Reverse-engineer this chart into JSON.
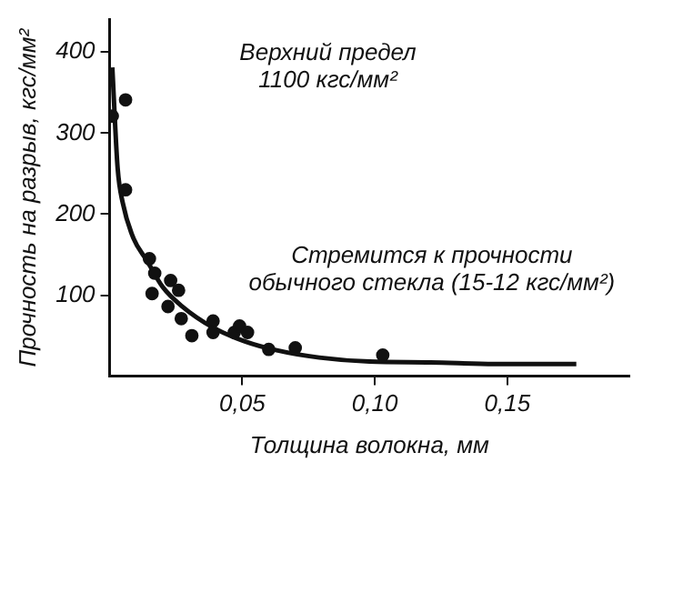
{
  "chart_data": {
    "type": "scatter",
    "xlabel": "Толщина волокна, мм",
    "ylabel": "Прочность на разрыв, кгс/мм²",
    "xlim": [
      0,
      0.196
    ],
    "xticks": [
      {
        "value": 0.05,
        "label": "0,05"
      },
      {
        "value": 0.1,
        "label": "0,10"
      },
      {
        "value": 0.15,
        "label": "0,15"
      }
    ],
    "ylim": [
      0,
      440
    ],
    "yticks": [
      100,
      200,
      300,
      400
    ],
    "annotations": [
      "Верхний предел\n1100 кгс/мм²",
      "Стремится к прочности\nобычного стекла (15-12 кгс/мм²)"
    ],
    "series": [
      {
        "color": "#111111",
        "marker": "circle",
        "x": [
          0.001,
          0.006,
          0.006,
          0.015,
          0.017,
          0.016,
          0.023,
          0.026,
          0.022,
          0.027,
          0.031,
          0.039,
          0.039,
          0.047,
          0.049,
          0.052,
          0.06,
          0.07,
          0.103
        ],
        "values": [
          321,
          341,
          230,
          145,
          127,
          102,
          118,
          106,
          86,
          71,
          50,
          68,
          54,
          54,
          62,
          54,
          33,
          35,
          26
        ]
      },
      {
        "type": "line",
        "color": "#111111",
        "marker": "none",
        "line_style": "solid",
        "x": [
          0.001,
          0.003,
          0.005,
          0.009,
          0.014,
          0.02,
          0.027,
          0.039,
          0.051,
          0.063,
          0.079,
          0.098,
          0.121,
          0.145,
          0.176
        ],
        "values": [
          381,
          257,
          213,
          170,
          143,
          110,
          87,
          60,
          43,
          32,
          23,
          18,
          17,
          15,
          15
        ]
      }
    ]
  }
}
